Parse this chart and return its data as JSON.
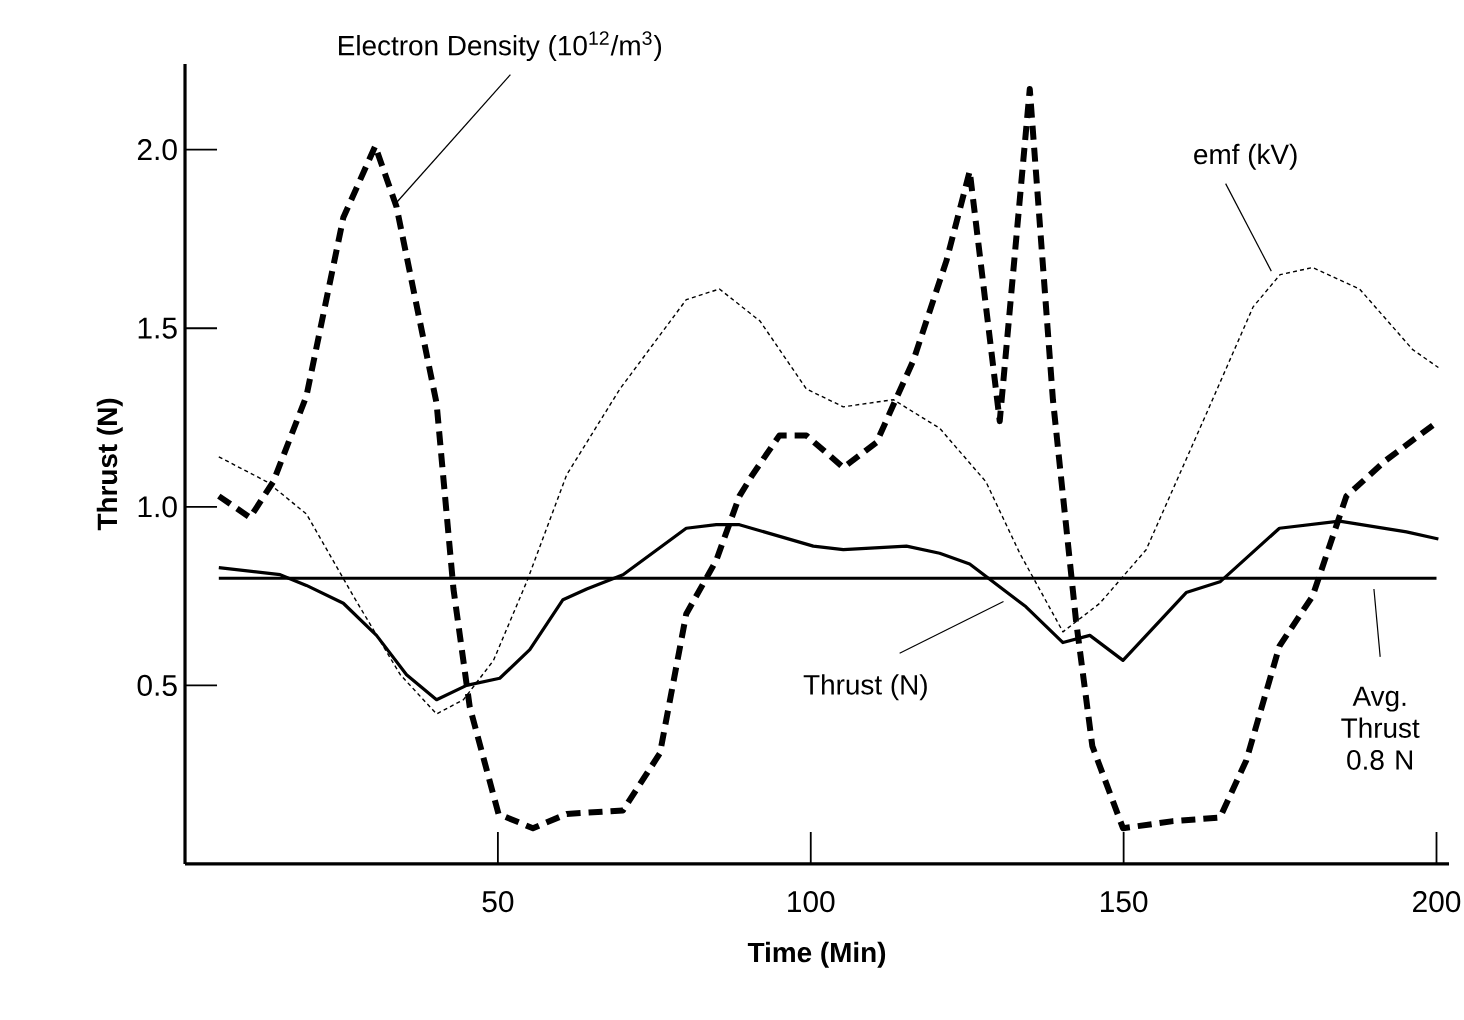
{
  "chart_data": {
    "type": "line",
    "xlabel": "Time (Min)",
    "ylabel": "Thrust (N)",
    "xlim": [
      0,
      202
    ],
    "ylim": [
      0,
      2.24
    ],
    "xticks": [
      50,
      100,
      150,
      200
    ],
    "yticks": [
      0.5,
      {
        "value": 1.0,
        "label": "1.0"
      },
      1.5,
      {
        "value": 2.0,
        "label": "2.0"
      }
    ],
    "grid": false,
    "series": [
      {
        "name": "Thrust (N)",
        "color": "#000000",
        "line_style": "solid",
        "x": [
          5.4,
          15.2,
          19.4,
          25.3,
          30.6,
          35.4,
          40.2,
          45,
          50.3,
          55.1,
          60.4,
          64.2,
          70,
          80.1,
          84.9,
          88.6,
          100.4,
          105.2,
          115.3,
          120.6,
          125.4,
          134.4,
          140.3,
          144.6,
          149.9,
          160,
          165.4,
          174.9,
          184.5,
          195.2,
          200.3
        ],
        "values": [
          0.83,
          0.81,
          0.78,
          0.73,
          0.64,
          0.53,
          0.46,
          0.5,
          0.52,
          0.6,
          0.74,
          0.77,
          0.81,
          0.94,
          0.95,
          0.95,
          0.89,
          0.88,
          0.89,
          0.87,
          0.84,
          0.72,
          0.62,
          0.64,
          0.57,
          0.76,
          0.79,
          0.94,
          0.96,
          0.93,
          0.91
        ]
      },
      {
        "name": "Electron Density (10$^{12}$/m$^{3}$)",
        "color": "#000000",
        "line_style": "dashed",
        "x": [
          5.4,
          10.4,
          14.1,
          19.4,
          25.3,
          30.4,
          33.8,
          40.2,
          42.9,
          45.5,
          50.1,
          55.6,
          61,
          70,
          75.9,
          80.1,
          84.9,
          88.6,
          90.7,
          95,
          99.3,
          105.2,
          110.5,
          116.4,
          121.7,
          125.4,
          130.2,
          135,
          138.7,
          142.4,
          145,
          149.9,
          157.9,
          165.4,
          169.6,
          174.9,
          180.2,
          185.6,
          191.9,
          200.3
        ],
        "values": [
          1.03,
          0.97,
          1.07,
          1.31,
          1.81,
          2.01,
          1.84,
          1.29,
          0.77,
          0.44,
          0.14,
          0.1,
          0.14,
          0.15,
          0.31,
          0.7,
          0.85,
          1.03,
          1.09,
          1.2,
          1.2,
          1.11,
          1.18,
          1.41,
          1.69,
          1.94,
          1.24,
          2.17,
          1.3,
          0.68,
          0.33,
          0.1,
          0.12,
          0.13,
          0.29,
          0.61,
          0.75,
          1.03,
          1.13,
          1.24
        ]
      },
      {
        "name": "emf (kV)",
        "color": "#000000",
        "line_style": "dotted",
        "x": [
          5.4,
          13.1,
          19.4,
          26.9,
          34.4,
          40.2,
          44.5,
          49.3,
          54.6,
          61,
          69.5,
          80.1,
          85.4,
          91.9,
          99.3,
          105.2,
          113.2,
          120.6,
          128,
          133.4,
          140.3,
          146.2,
          153.6,
          163.2,
          170.7,
          175,
          180.2,
          187.7,
          196.2,
          200.3
        ],
        "values": [
          1.14,
          1.07,
          0.98,
          0.75,
          0.53,
          0.42,
          0.46,
          0.57,
          0.79,
          1.09,
          1.33,
          1.58,
          1.61,
          1.52,
          1.33,
          1.28,
          1.3,
          1.22,
          1.07,
          0.87,
          0.65,
          0.73,
          0.88,
          1.26,
          1.56,
          1.65,
          1.67,
          1.61,
          1.44,
          1.39
        ]
      }
    ],
    "ref_lines": [
      {
        "axis": "y",
        "value": 0.8,
        "label": "Avg. Thrust 0.8 N",
        "color": "#000000",
        "line_style": "solid"
      }
    ]
  }
}
